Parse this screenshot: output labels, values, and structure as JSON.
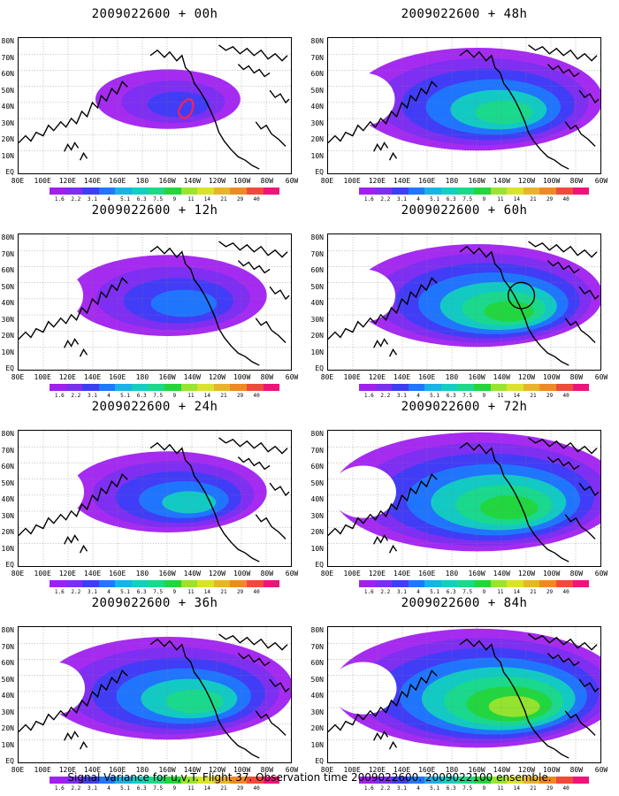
{
  "caption": "Signal Variance for u,v,T. Flight 37. Observation time 2009022600. 2009022100 ensemble.",
  "panels": [
    {
      "title": "2009022600 + 00h",
      "col": 0,
      "row": 0,
      "level": 0.2,
      "blob": "small",
      "marker": "red-loop"
    },
    {
      "title": "2009022600 + 12h",
      "col": 0,
      "row": 1,
      "level": 0.35,
      "blob": "medium",
      "marker": "none"
    },
    {
      "title": "2009022600 + 24h",
      "col": 0,
      "row": 2,
      "level": 0.45,
      "blob": "medium",
      "marker": "none"
    },
    {
      "title": "2009022600 + 36h",
      "col": 0,
      "row": 3,
      "level": 0.55,
      "blob": "large",
      "marker": "none"
    },
    {
      "title": "2009022600 + 48h",
      "col": 1,
      "row": 0,
      "level": 0.6,
      "blob": "large",
      "marker": "none"
    },
    {
      "title": "2009022600 + 60h",
      "col": 1,
      "row": 1,
      "level": 0.65,
      "blob": "large",
      "marker": "black-circle"
    },
    {
      "title": "2009022600 + 72h",
      "col": 1,
      "row": 2,
      "level": 0.75,
      "blob": "xlarge",
      "marker": "none"
    },
    {
      "title": "2009022600 + 84h",
      "col": 1,
      "row": 3,
      "level": 0.8,
      "blob": "xlarge",
      "marker": "none"
    }
  ],
  "y_axis_labels": [
    "EQ",
    "10N",
    "20N",
    "30N",
    "40N",
    "50N",
    "60N",
    "70N",
    "80N"
  ],
  "x_axis_labels": [
    "80E",
    "100E",
    "120E",
    "140E",
    "160E",
    "180",
    "160W",
    "140W",
    "120W",
    "100W",
    "80W",
    "60W"
  ],
  "colorbar": {
    "labels": [
      "1.6",
      "2.2",
      "3.1",
      "4",
      "5.1",
      "6.3",
      "7.5",
      "9",
      "11",
      "14",
      "21",
      "29",
      "40"
    ],
    "colors": [
      "#a020f0",
      "#7b2ff0",
      "#3e3ef5",
      "#1f78ff",
      "#17b4e6",
      "#12cfc0",
      "#1bd98a",
      "#23d63b",
      "#9ae42e",
      "#d9e32a",
      "#e8b52a",
      "#ef8a23",
      "#f04a3a",
      "#f0137a"
    ]
  },
  "colors": {
    "background": "#ffffff",
    "coast": "#000000",
    "grid": "#7f7f7f",
    "marker_red": "#ff2050"
  }
}
